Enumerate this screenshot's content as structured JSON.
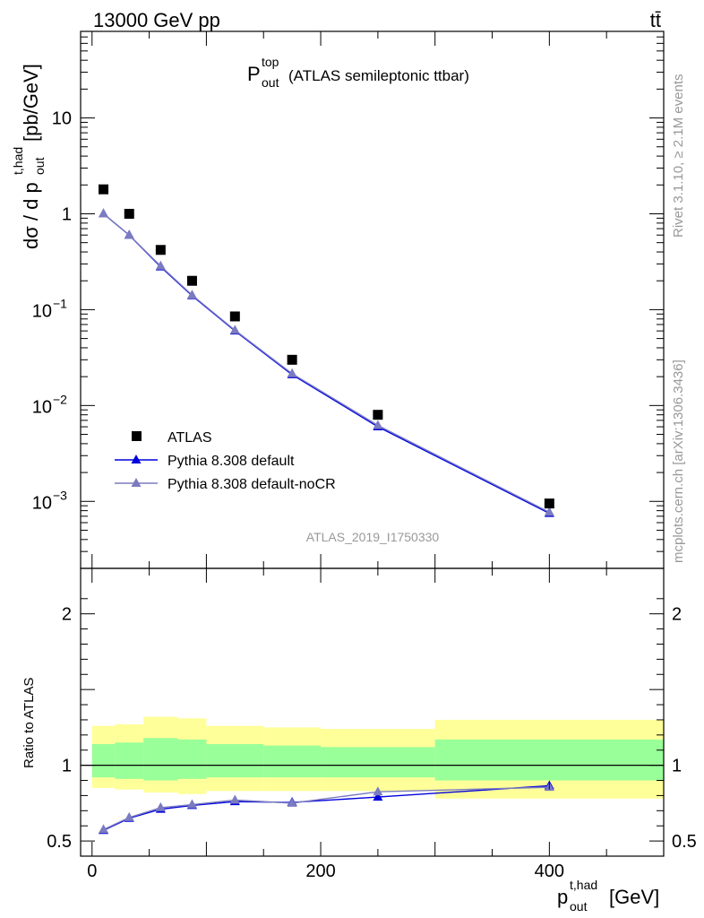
{
  "header": {
    "energy": "13000 GeV pp",
    "process": "tt̄"
  },
  "side_labels": {
    "rivet": "Rivet 3.1.10, ≥ 2.1M events",
    "mcplots": "mcplots.cern.ch [arXiv:1306.3436]"
  },
  "chart_data": [
    {
      "type": "scatter",
      "title_main": "P",
      "title_sup": "top",
      "title_sub": "out",
      "title_rest": "(ATLAS semileptonic ttbar)",
      "analysis_id": "ATLAS_2019_I1750330",
      "ylabel_main": "dσ / d p",
      "ylabel_sup": "t,had",
      "ylabel_sub": "out",
      "ylabel_unit": "[pb/GeV]",
      "yscale": "log",
      "xlim": [
        -10,
        500
      ],
      "ylim": [
        0.0002,
        80
      ],
      "ytick_labels": [
        {
          "value": 10,
          "text": "10"
        },
        {
          "value": 1,
          "text": "1"
        },
        {
          "value": 0.1,
          "base": "10",
          "exp": "−1"
        },
        {
          "value": 0.01,
          "base": "10",
          "exp": "−2"
        },
        {
          "value": 0.001,
          "base": "10",
          "exp": "−3"
        }
      ],
      "legend_position": "lower-left",
      "series": [
        {
          "name": "ATLAS",
          "color": "#000000",
          "marker": "square",
          "x": [
            10,
            32.5,
            60,
            87.5,
            125,
            175,
            250,
            400
          ],
          "y": [
            1.8,
            1.0,
            0.42,
            0.2,
            0.085,
            0.03,
            0.008,
            0.00095
          ]
        },
        {
          "name": "Pythia 8.308 default",
          "color": "#0000dd",
          "marker": "triangle",
          "x": [
            10,
            32.5,
            60,
            87.5,
            125,
            175,
            250,
            400
          ],
          "y": [
            1.0,
            0.6,
            0.28,
            0.14,
            0.06,
            0.021,
            0.006,
            0.00075
          ]
        },
        {
          "name": "Pythia 8.308 default-noCR",
          "color": "#7b7bc0",
          "marker": "triangle",
          "x": [
            10,
            32.5,
            60,
            87.5,
            125,
            175,
            250,
            400
          ],
          "y": [
            1.0,
            0.6,
            0.285,
            0.142,
            0.061,
            0.0215,
            0.0062,
            0.00077
          ]
        }
      ]
    },
    {
      "type": "line",
      "ylabel": "Ratio to ATLAS",
      "xlabel_main": "p",
      "xlabel_sup": "t,had",
      "xlabel_sub": "out",
      "xlabel_unit": "[GeV]",
      "xlim": [
        -10,
        500
      ],
      "ylim": [
        0.4,
        2.3
      ],
      "x_ticks": [
        0,
        200,
        400
      ],
      "y_ticks": [
        0.5,
        1,
        2
      ],
      "bins": [
        {
          "x0": 0,
          "x1": 20,
          "total_lo": 0.85,
          "total_hi": 1.26,
          "stat_lo": 0.92,
          "stat_hi": 1.14
        },
        {
          "x0": 20,
          "x1": 45,
          "total_lo": 0.84,
          "total_hi": 1.27,
          "stat_lo": 0.91,
          "stat_hi": 1.15
        },
        {
          "x0": 45,
          "x1": 75,
          "total_lo": 0.82,
          "total_hi": 1.32,
          "stat_lo": 0.9,
          "stat_hi": 1.18
        },
        {
          "x0": 75,
          "x1": 100,
          "total_lo": 0.81,
          "total_hi": 1.31,
          "stat_lo": 0.91,
          "stat_hi": 1.17
        },
        {
          "x0": 100,
          "x1": 150,
          "total_lo": 0.83,
          "total_hi": 1.26,
          "stat_lo": 0.92,
          "stat_hi": 1.14
        },
        {
          "x0": 150,
          "x1": 200,
          "total_lo": 0.83,
          "total_hi": 1.25,
          "stat_lo": 0.92,
          "stat_hi": 1.13
        },
        {
          "x0": 200,
          "x1": 300,
          "total_lo": 0.83,
          "total_hi": 1.24,
          "stat_lo": 0.92,
          "stat_hi": 1.12
        },
        {
          "x0": 300,
          "x1": 500,
          "total_lo": 0.78,
          "total_hi": 1.3,
          "stat_lo": 0.9,
          "stat_hi": 1.17
        }
      ],
      "series": [
        {
          "name": "Pythia 8.308 default",
          "color": "#0000dd",
          "x": [
            10,
            32.5,
            60,
            87.5,
            125,
            175,
            250,
            400
          ],
          "y": [
            0.57,
            0.65,
            0.71,
            0.735,
            0.76,
            0.755,
            0.79,
            0.865
          ]
        },
        {
          "name": "Pythia 8.308 default-noCR",
          "color": "#7b7bc0",
          "x": [
            10,
            32.5,
            60,
            87.5,
            125,
            175,
            250,
            400
          ],
          "y": [
            0.575,
            0.655,
            0.72,
            0.74,
            0.77,
            0.75,
            0.825,
            0.855
          ]
        }
      ]
    }
  ]
}
